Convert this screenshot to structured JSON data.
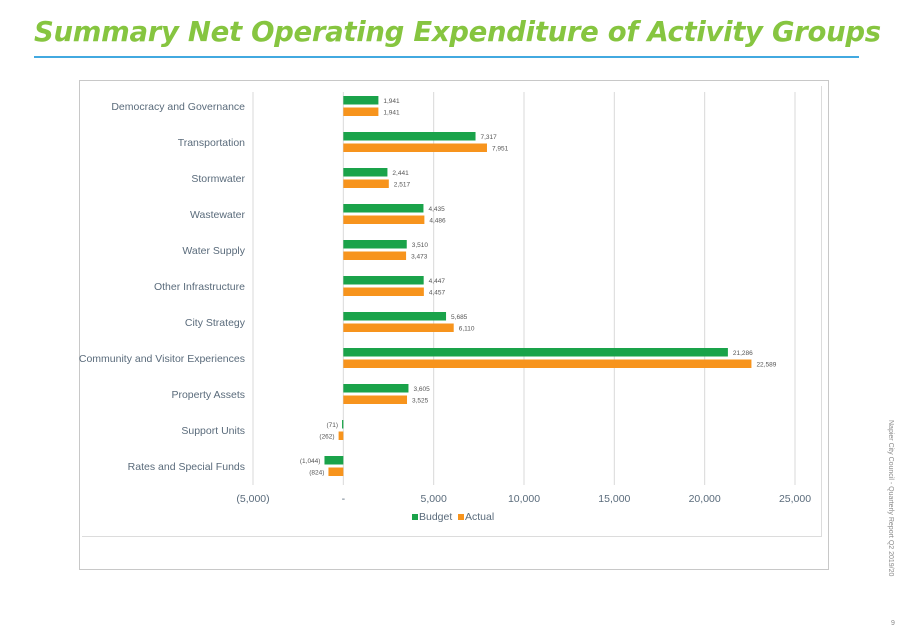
{
  "page": {
    "title": "Summary Net Operating Expenditure of Activity Groups",
    "side_text": "Napier City Council - Quarterly Report Q2 2019/20",
    "page_number": "9"
  },
  "colors": {
    "title": "#86c540",
    "rule": "#42a9e0",
    "budget": "#1aa34a",
    "actual": "#f7941d",
    "grid": "#d9d9d9",
    "label": "#5a6b7b"
  },
  "chart_data": {
    "type": "bar",
    "orientation": "horizontal",
    "categories": [
      "Democracy and Governance",
      "Transportation",
      "Stormwater",
      "Wastewater",
      "Water Supply",
      "Other Infrastructure",
      "City Strategy",
      "Community and Visitor Experiences",
      "Property Assets",
      "Support Units",
      "Rates and Special Funds"
    ],
    "series": [
      {
        "name": "Budget",
        "values": [
          1941,
          7317,
          2441,
          4435,
          3510,
          4447,
          5685,
          21286,
          3605,
          -71,
          -1044
        ],
        "labels": [
          "1,941",
          "7,317",
          "2,441",
          "4,435",
          "3,510",
          "4,447",
          "5,685",
          "21,286",
          "3,605",
          "(71)",
          "(1,044)"
        ]
      },
      {
        "name": "Actual",
        "values": [
          1941,
          7951,
          2517,
          4486,
          3473,
          4457,
          6110,
          22589,
          3525,
          -262,
          -824
        ],
        "labels": [
          "1,941",
          "7,951",
          "2,517",
          "4,486",
          "3,473",
          "4,457",
          "6,110",
          "22,589",
          "3,525",
          "(262)",
          "(824)"
        ]
      }
    ],
    "xlim": [
      -5000,
      25000
    ],
    "xticks": [
      -5000,
      0,
      5000,
      10000,
      15000,
      20000,
      25000
    ],
    "xtick_labels": [
      "(5,000)",
      "-",
      "5,000",
      "10,000",
      "15,000",
      "20,000",
      "25,000"
    ],
    "legend": [
      "Budget",
      "Actual"
    ],
    "legend_position": "bottom",
    "grid": true
  }
}
